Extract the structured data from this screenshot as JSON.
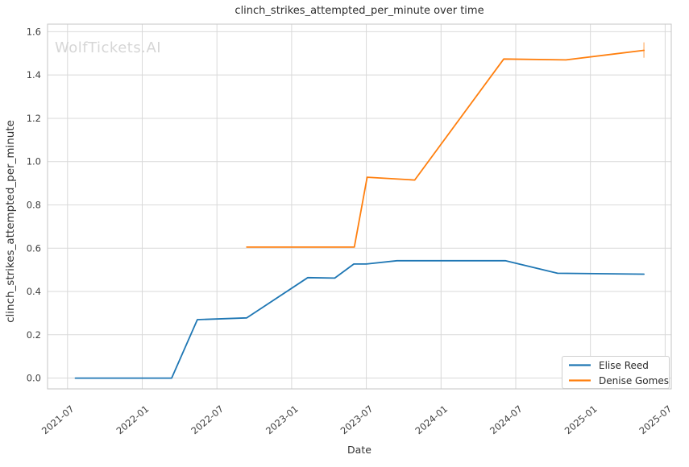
{
  "chart_data": {
    "type": "line",
    "title": "clinch_strikes_attempted_per_minute over time",
    "xlabel": "Date",
    "ylabel": "clinch_strikes_attempted_per_minute",
    "watermark": "WolfTickets.AI",
    "grid": true,
    "legend_position": "lower right",
    "x_tick_labels": [
      "2021-07",
      "2022-01",
      "2022-07",
      "2023-01",
      "2023-07",
      "2024-01",
      "2024-07",
      "2025-01",
      "2025-07"
    ],
    "y_tick_labels": [
      "0.0",
      "0.2",
      "0.4",
      "0.6",
      "0.8",
      "1.0",
      "1.2",
      "1.4",
      "1.6"
    ],
    "xlim": [
      "2021-05-13",
      "2025-07-16"
    ],
    "ylim": [
      -0.05,
      1.635
    ],
    "colors": {
      "grid": "#d9d9d9",
      "spine": "#c6c6c6",
      "text": "#3b3b3b",
      "watermark": "#d6d6d6"
    },
    "series": [
      {
        "name": "Elise Reed",
        "color": "#1f77b4",
        "points": [
          [
            "2021-07-20",
            0.0
          ],
          [
            "2022-03-12",
            0.0
          ],
          [
            "2022-05-14",
            0.27
          ],
          [
            "2022-09-13",
            0.278
          ],
          [
            "2023-02-10",
            0.464
          ],
          [
            "2023-04-15",
            0.462
          ],
          [
            "2023-06-01",
            0.527
          ],
          [
            "2023-07-01",
            0.527
          ],
          [
            "2023-09-15",
            0.542
          ],
          [
            "2024-06-06",
            0.542
          ],
          [
            "2024-10-12",
            0.484
          ],
          [
            "2025-05-10",
            0.48
          ]
        ]
      },
      {
        "name": "Denise Gomes",
        "color": "#ff7f0e",
        "points": [
          [
            "2022-09-13",
            0.605
          ],
          [
            "2023-06-02",
            0.605
          ],
          [
            "2023-07-03",
            0.928
          ],
          [
            "2023-10-28",
            0.915
          ],
          [
            "2024-06-02",
            1.474
          ],
          [
            "2024-11-02",
            1.47
          ],
          [
            "2025-05-10",
            1.514
          ]
        ],
        "end_cap": {
          "date": "2025-05-10",
          "value_low": 1.48,
          "value_high": 1.551
        }
      }
    ]
  }
}
